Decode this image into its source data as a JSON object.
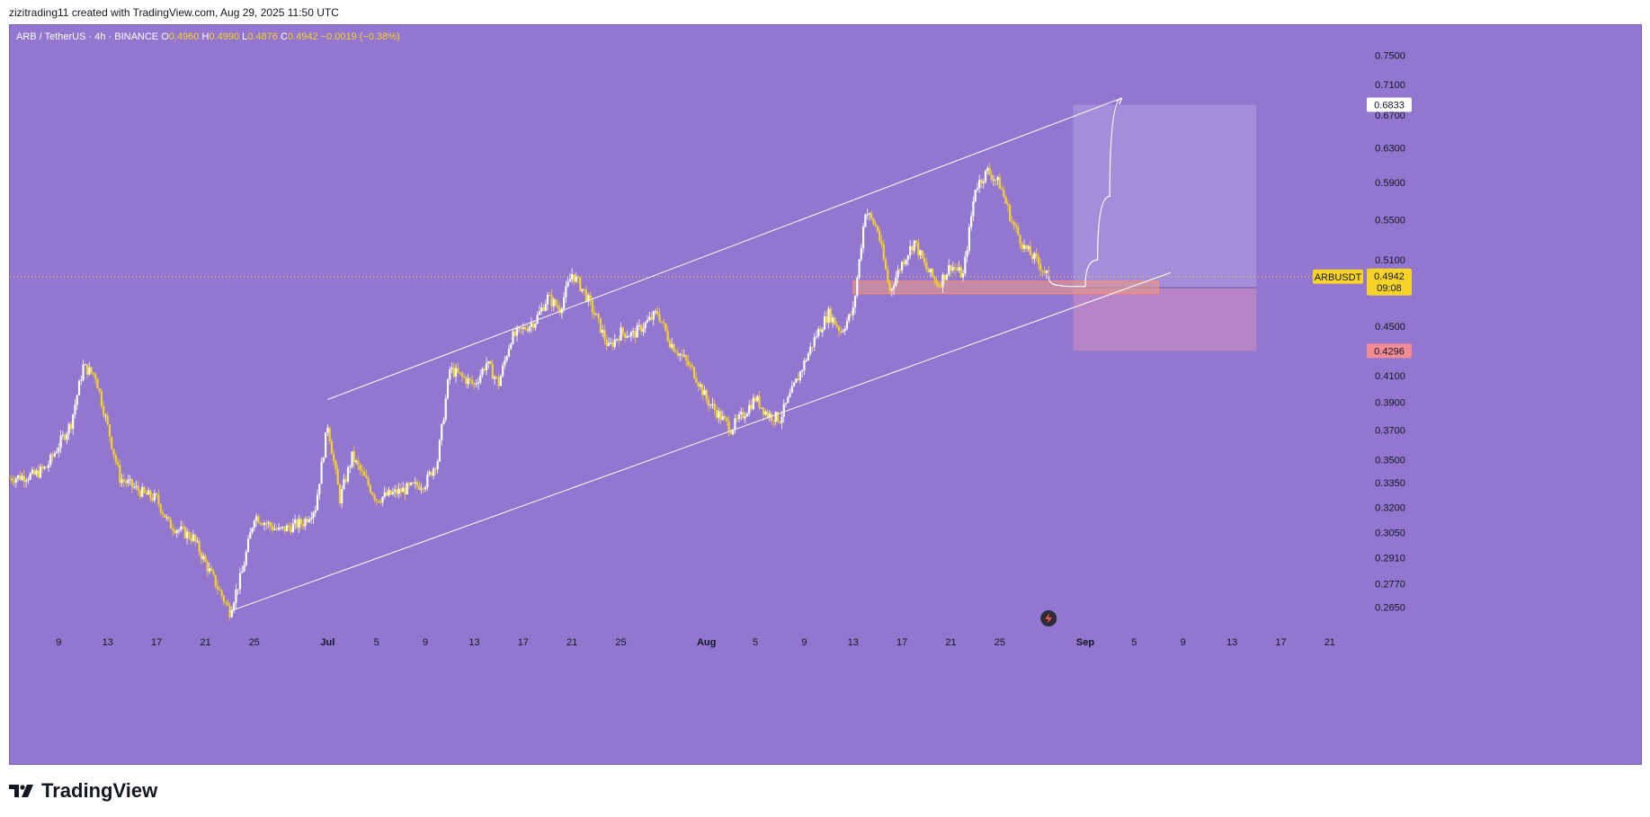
{
  "header": {
    "text": "zizitrading11 created with TradingView.com, Aug 29, 2025 11:50 UTC"
  },
  "legend": {
    "symbol": "ARB / TetherUS · 4h · BINANCE",
    "o_label": "O",
    "o": "0.4960",
    "h_label": "H",
    "h": "0.4990",
    "l_label": "L",
    "l": "0.4876",
    "c_label": "C",
    "c": "0.4942",
    "change": "−0.0019 (−0.38%)"
  },
  "footer": {
    "brand": "TradingView",
    "logo_icon": "tradingview-logo-icon"
  },
  "colors": {
    "background": "#9276cf",
    "candle_up": "#ffffff",
    "candle_down": "#f5d327",
    "channel": "#ffffff",
    "target_zone": "#a996dc",
    "stop_zone": "#c08ac4",
    "support_box": "#e79a8b",
    "price_label_bg": "#f5d327",
    "stop_label_bg": "#f28b93"
  },
  "chart_data": {
    "type": "candlestick",
    "symbol": "ARB / TetherUS",
    "timeframe": "4h",
    "exchange": "BINANCE",
    "y_scale": "log",
    "ylim": [
      0.256,
      0.77
    ],
    "y_ticks": [
      "0.7500",
      "0.7100",
      "0.6700",
      "0.6300",
      "0.5900",
      "0.5500",
      "0.5100",
      "0.4500",
      "0.4100",
      "0.3900",
      "0.3700",
      "0.3500",
      "0.3350",
      "0.3200",
      "0.3050",
      "0.2910",
      "0.2770",
      "0.2650"
    ],
    "x_ticks": [
      "9",
      "13",
      "17",
      "21",
      "25",
      "Jul",
      "5",
      "9",
      "13",
      "17",
      "21",
      "25",
      "Aug",
      "5",
      "9",
      "13",
      "17",
      "21",
      "25",
      "Sep",
      "5",
      "9",
      "13",
      "17",
      "21"
    ],
    "x_tick_dates": [
      "2025-06-09",
      "2025-06-13",
      "2025-06-17",
      "2025-06-21",
      "2025-06-25",
      "2025-07-01",
      "2025-07-05",
      "2025-07-09",
      "2025-07-13",
      "2025-07-17",
      "2025-07-21",
      "2025-07-25",
      "2025-08-01",
      "2025-08-05",
      "2025-08-09",
      "2025-08-13",
      "2025-08-17",
      "2025-08-21",
      "2025-08-25",
      "2025-09-01",
      "2025-09-05",
      "2025-09-09",
      "2025-09-13",
      "2025-09-17",
      "2025-09-21"
    ],
    "x_range": [
      "2025-06-05",
      "2025-09-23"
    ],
    "price_path": [
      [
        "2025-06-05",
        0.338
      ],
      [
        "2025-06-07",
        0.34
      ],
      [
        "2025-06-08",
        0.345
      ],
      [
        "2025-06-10",
        0.375
      ],
      [
        "2025-06-11",
        0.417
      ],
      [
        "2025-06-12",
        0.41
      ],
      [
        "2025-06-14",
        0.338
      ],
      [
        "2025-06-16",
        0.328
      ],
      [
        "2025-06-17",
        0.325
      ],
      [
        "2025-06-18",
        0.31
      ],
      [
        "2025-06-20",
        0.302
      ],
      [
        "2025-06-21",
        0.288
      ],
      [
        "2025-06-22",
        0.275
      ],
      [
        "2025-06-23",
        0.263
      ],
      [
        "2025-06-24",
        0.283
      ],
      [
        "2025-06-25",
        0.315
      ],
      [
        "2025-06-27",
        0.306
      ],
      [
        "2025-06-29",
        0.311
      ],
      [
        "2025-06-30",
        0.32
      ],
      [
        "2025-07-01",
        0.374
      ],
      [
        "2025-07-02",
        0.325
      ],
      [
        "2025-07-03",
        0.352
      ],
      [
        "2025-07-05",
        0.325
      ],
      [
        "2025-07-07",
        0.33
      ],
      [
        "2025-07-09",
        0.335
      ],
      [
        "2025-07-10",
        0.35
      ],
      [
        "2025-07-11",
        0.415
      ],
      [
        "2025-07-13",
        0.403
      ],
      [
        "2025-07-14",
        0.42
      ],
      [
        "2025-07-15",
        0.404
      ],
      [
        "2025-07-16",
        0.44
      ],
      [
        "2025-07-18",
        0.455
      ],
      [
        "2025-07-19",
        0.475
      ],
      [
        "2025-07-20",
        0.465
      ],
      [
        "2025-07-21",
        0.497
      ],
      [
        "2025-07-22",
        0.48
      ],
      [
        "2025-07-23",
        0.457
      ],
      [
        "2025-07-24",
        0.432
      ],
      [
        "2025-07-25",
        0.445
      ],
      [
        "2025-07-26",
        0.443
      ],
      [
        "2025-07-27",
        0.452
      ],
      [
        "2025-07-28",
        0.462
      ],
      [
        "2025-07-29",
        0.437
      ],
      [
        "2025-07-30",
        0.425
      ],
      [
        "2025-07-31",
        0.412
      ],
      [
        "2025-08-01",
        0.392
      ],
      [
        "2025-08-02",
        0.381
      ],
      [
        "2025-08-03",
        0.371
      ],
      [
        "2025-08-04",
        0.381
      ],
      [
        "2025-08-05",
        0.393
      ],
      [
        "2025-08-06",
        0.381
      ],
      [
        "2025-08-07",
        0.378
      ],
      [
        "2025-08-08",
        0.398
      ],
      [
        "2025-08-09",
        0.42
      ],
      [
        "2025-08-10",
        0.443
      ],
      [
        "2025-08-11",
        0.461
      ],
      [
        "2025-08-12",
        0.446
      ],
      [
        "2025-08-13",
        0.463
      ],
      [
        "2025-08-14",
        0.56
      ],
      [
        "2025-08-15",
        0.54
      ],
      [
        "2025-08-16",
        0.481
      ],
      [
        "2025-08-17",
        0.507
      ],
      [
        "2025-08-18",
        0.528
      ],
      [
        "2025-08-19",
        0.501
      ],
      [
        "2025-08-20",
        0.487
      ],
      [
        "2025-08-21",
        0.505
      ],
      [
        "2025-08-22",
        0.495
      ],
      [
        "2025-08-23",
        0.585
      ],
      [
        "2025-08-24",
        0.603
      ],
      [
        "2025-08-25",
        0.588
      ],
      [
        "2025-08-26",
        0.548
      ],
      [
        "2025-08-27",
        0.522
      ],
      [
        "2025-08-28",
        0.509
      ],
      [
        "2025-08-29",
        0.4942
      ]
    ],
    "current_price": "0.4942",
    "current_label": "ARBUSDT",
    "countdown": "09:08",
    "entry_price": "0.4840",
    "target_price": "0.6833",
    "stop_price": "0.4296",
    "annotations": {
      "channel_upper": [
        [
          "2025-07-01",
          0.392
        ],
        [
          "2025-09-04",
          0.692
        ]
      ],
      "channel_lower": [
        [
          "2025-06-23",
          0.263
        ],
        [
          "2025-09-08",
          0.498
        ]
      ],
      "support_zone": {
        "from": "2025-08-13",
        "to": "2025-09-07",
        "low": 0.4785,
        "high": 0.49
      },
      "long_position": {
        "from": "2025-08-31",
        "to": "2025-09-15",
        "entry": 0.484,
        "target": 0.6833,
        "stop": 0.4296
      },
      "projection": [
        [
          "2025-08-29",
          0.4942
        ],
        [
          "2025-08-30",
          0.486
        ],
        [
          "2025-09-01",
          0.485
        ],
        [
          "2025-09-02",
          0.51
        ],
        [
          "2025-09-03",
          0.575
        ],
        [
          "2025-09-04",
          0.692
        ]
      ]
    }
  }
}
